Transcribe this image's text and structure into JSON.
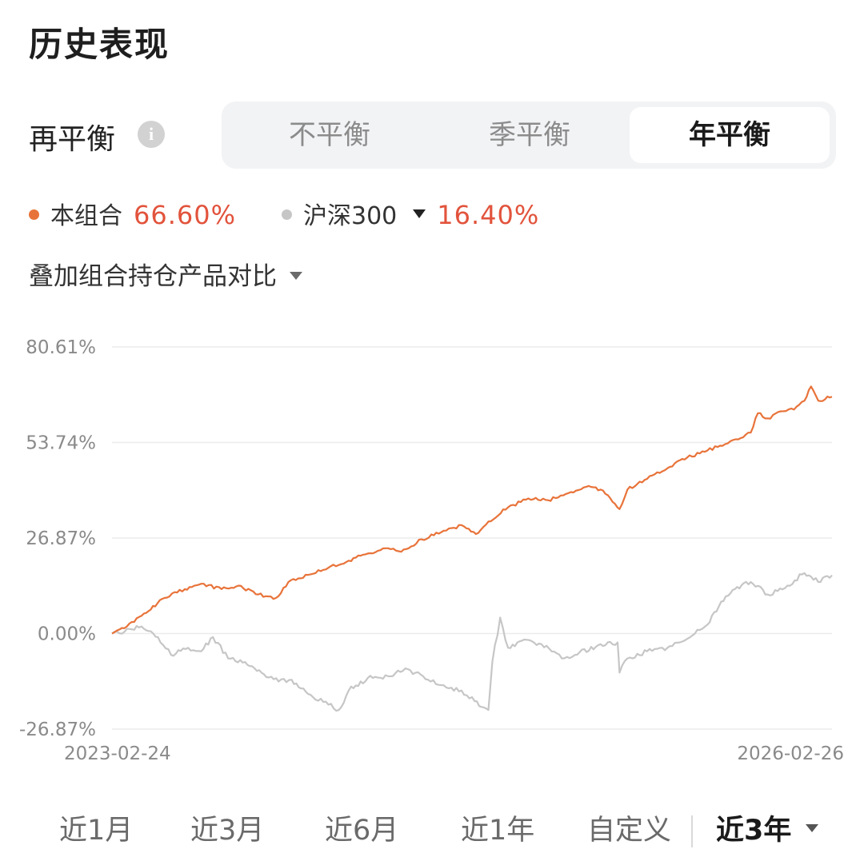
{
  "title": "历史表现",
  "rebalance": {
    "label": "再平衡",
    "info_icon": "info-icon",
    "options": [
      "不平衡",
      "季平衡",
      "年平衡"
    ],
    "selected": "年平衡"
  },
  "legend": {
    "portfolio": {
      "name": "本组合",
      "value": "66.60%",
      "color": "#e8733a"
    },
    "benchmark": {
      "name": "沪深300",
      "value": "16.40%",
      "color": "#c6c6c6",
      "value_color": "#e2533c"
    }
  },
  "compare": {
    "label": "叠加组合持仓产品对比"
  },
  "chart_data": {
    "type": "line",
    "x_start": "2023-02-24",
    "x_end": "2026-02-26",
    "y_ticks": [
      "80.61%",
      "53.74%",
      "26.87%",
      "0.00%",
      "-26.87%"
    ],
    "ylim": [
      -26.87,
      80.61
    ],
    "grid": true,
    "series": [
      {
        "name": "本组合",
        "color": "#e8733a",
        "points": [
          [
            "2023-02-24",
            0.0
          ],
          [
            "2023-03-15",
            1.5
          ],
          [
            "2023-04-10",
            5.0
          ],
          [
            "2023-05-15",
            10.0
          ],
          [
            "2023-06-15",
            12.5
          ],
          [
            "2023-07-10",
            14.0
          ],
          [
            "2023-08-10",
            12.5
          ],
          [
            "2023-09-05",
            13.5
          ],
          [
            "2023-10-05",
            11.0
          ],
          [
            "2023-11-01",
            10.0
          ],
          [
            "2023-11-20",
            14.5
          ],
          [
            "2023-12-20",
            16.5
          ],
          [
            "2024-01-20",
            18.5
          ],
          [
            "2024-02-20",
            20.5
          ],
          [
            "2024-03-20",
            22.5
          ],
          [
            "2024-04-20",
            24.0
          ],
          [
            "2024-05-10",
            23.0
          ],
          [
            "2024-06-10",
            26.5
          ],
          [
            "2024-07-10",
            28.5
          ],
          [
            "2024-08-10",
            30.5
          ],
          [
            "2024-09-01",
            28.0
          ],
          [
            "2024-09-20",
            31.5
          ],
          [
            "2024-10-20",
            35.5
          ],
          [
            "2024-11-20",
            38.0
          ],
          [
            "2024-12-20",
            37.5
          ],
          [
            "2025-01-20",
            39.5
          ],
          [
            "2025-02-20",
            41.5
          ],
          [
            "2025-03-10",
            40.5
          ],
          [
            "2025-03-25",
            38.0
          ],
          [
            "2025-04-08",
            35.0
          ],
          [
            "2025-04-20",
            40.5
          ],
          [
            "2025-05-20",
            43.5
          ],
          [
            "2025-06-20",
            46.5
          ],
          [
            "2025-07-20",
            49.5
          ],
          [
            "2025-08-20",
            51.5
          ],
          [
            "2025-09-20",
            53.5
          ],
          [
            "2025-10-10",
            55.0
          ],
          [
            "2025-10-25",
            56.5
          ],
          [
            "2025-11-05",
            62.0
          ],
          [
            "2025-11-20",
            60.5
          ],
          [
            "2025-12-10",
            62.5
          ],
          [
            "2025-12-30",
            63.0
          ],
          [
            "2026-01-15",
            65.5
          ],
          [
            "2026-01-25",
            69.5
          ],
          [
            "2026-02-05",
            65.5
          ],
          [
            "2026-02-26",
            66.6
          ]
        ]
      },
      {
        "name": "沪深300",
        "color": "#c6c6c6",
        "points": [
          [
            "2023-02-24",
            0.0
          ],
          [
            "2023-03-15",
            0.5
          ],
          [
            "2023-04-10",
            2.0
          ],
          [
            "2023-05-05",
            -1.0
          ],
          [
            "2023-05-25",
            -6.0
          ],
          [
            "2023-06-20",
            -4.0
          ],
          [
            "2023-07-10",
            -5.0
          ],
          [
            "2023-07-28",
            -1.0
          ],
          [
            "2023-08-20",
            -7.0
          ],
          [
            "2023-09-15",
            -8.0
          ],
          [
            "2023-10-10",
            -11.0
          ],
          [
            "2023-11-05",
            -13.5
          ],
          [
            "2023-11-25",
            -13.0
          ],
          [
            "2023-12-20",
            -17.0
          ],
          [
            "2024-01-20",
            -20.0
          ],
          [
            "2024-02-05",
            -21.5
          ],
          [
            "2024-02-20",
            -16.0
          ],
          [
            "2024-03-20",
            -12.5
          ],
          [
            "2024-04-20",
            -12.0
          ],
          [
            "2024-05-20",
            -10.0
          ],
          [
            "2024-06-20",
            -13.0
          ],
          [
            "2024-07-10",
            -14.5
          ],
          [
            "2024-08-10",
            -16.0
          ],
          [
            "2024-08-30",
            -19.0
          ],
          [
            "2024-09-20",
            -21.5
          ],
          [
            "2024-09-26",
            -8.0
          ],
          [
            "2024-10-08",
            4.5
          ],
          [
            "2024-10-20",
            -4.0
          ],
          [
            "2024-11-10",
            -2.0
          ],
          [
            "2024-12-10",
            -3.0
          ],
          [
            "2025-01-10",
            -7.0
          ],
          [
            "2025-01-30",
            -6.0
          ],
          [
            "2025-03-10",
            -3.0
          ],
          [
            "2025-04-05",
            -2.5
          ],
          [
            "2025-04-08",
            -11.0
          ],
          [
            "2025-04-20",
            -7.0
          ],
          [
            "2025-05-20",
            -5.0
          ],
          [
            "2025-06-20",
            -4.0
          ],
          [
            "2025-07-20",
            -1.5
          ],
          [
            "2025-08-20",
            2.5
          ],
          [
            "2025-09-10",
            9.0
          ],
          [
            "2025-10-01",
            12.5
          ],
          [
            "2025-10-25",
            14.5
          ],
          [
            "2025-11-20",
            11.0
          ],
          [
            "2025-12-20",
            13.5
          ],
          [
            "2026-01-15",
            17.0
          ],
          [
            "2026-01-25",
            16.0
          ],
          [
            "2026-02-05",
            14.5
          ],
          [
            "2026-02-26",
            16.4
          ]
        ]
      }
    ]
  },
  "x_axis": {
    "start": "2023-02-24",
    "end": "2026-02-26"
  },
  "tabs": {
    "items": [
      "近1月",
      "近3月",
      "近6月",
      "近1年",
      "自定义"
    ],
    "active": "近3年"
  }
}
